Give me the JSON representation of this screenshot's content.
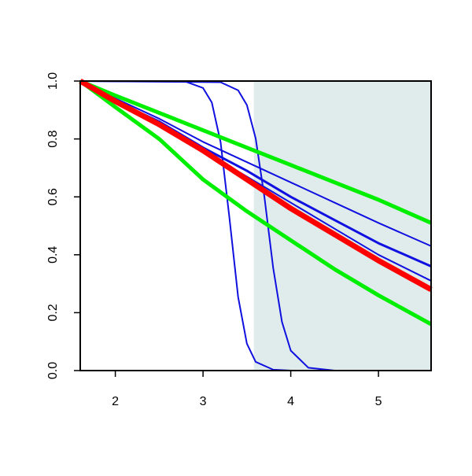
{
  "chart_data": {
    "type": "line",
    "xlim": [
      1.6,
      5.6
    ],
    "ylim": [
      0,
      1
    ],
    "xticks": [
      2,
      3,
      4,
      5
    ],
    "yticks": [
      {
        "value": 0,
        "label": "0.0"
      },
      0.2,
      0.4,
      0.6,
      0.8,
      {
        "value": 1,
        "label": "1.0"
      }
    ],
    "shade": {
      "x": [
        3.58,
        5.6
      ],
      "color": "#dfeceb"
    },
    "series": [
      {
        "color": "#1010e0",
        "width": 2,
        "x": [
          1.6,
          2,
          2.5,
          3,
          3.5,
          4,
          4.5,
          5,
          5.6
        ],
        "values": [
          1,
          0.94,
          0.87,
          0.79,
          0.72,
          0.65,
          0.58,
          0.51,
          0.43
        ]
      },
      {
        "color": "#1010e0",
        "width": 3,
        "x": [
          1.6,
          2,
          2.5,
          3,
          3.5,
          4,
          4.5,
          5,
          5.6
        ],
        "values": [
          1,
          0.93,
          0.86,
          0.77,
          0.69,
          0.6,
          0.52,
          0.44,
          0.36
        ]
      },
      {
        "color": "#1010e0",
        "width": 2,
        "x": [
          1.6,
          2,
          2.5,
          3,
          3.5,
          4,
          4.5,
          5,
          5.6
        ],
        "values": [
          1,
          0.93,
          0.85,
          0.76,
          0.67,
          0.58,
          0.49,
          0.4,
          0.31
        ]
      },
      {
        "color": "#1010e0",
        "width": 2,
        "x": [
          1.6,
          2.8,
          3.0,
          3.1,
          3.2,
          3.3,
          3.4,
          3.5,
          3.6,
          3.8,
          4.0,
          5.6
        ],
        "values": [
          1,
          0.998,
          0.976,
          0.926,
          0.789,
          0.53,
          0.254,
          0.093,
          0.03,
          0.003,
          0,
          0
        ]
      },
      {
        "color": "#1010e0",
        "width": 2,
        "x": [
          1.6,
          3.2,
          3.4,
          3.5,
          3.6,
          3.7,
          3.8,
          3.9,
          4.0,
          4.2,
          4.5,
          5.6
        ],
        "values": [
          1,
          0.996,
          0.968,
          0.917,
          0.802,
          0.599,
          0.354,
          0.168,
          0.069,
          0.01,
          0,
          0
        ]
      },
      {
        "color": "#00ee00",
        "width": 5,
        "x": [
          1.6,
          2,
          2.5,
          3,
          3.5,
          4,
          4.5,
          5,
          5.6
        ],
        "values": [
          1,
          0.95,
          0.89,
          0.83,
          0.77,
          0.71,
          0.65,
          0.59,
          0.51
        ]
      },
      {
        "color": "#00ee00",
        "width": 5,
        "x": [
          1.6,
          2,
          2.5,
          3,
          3.5,
          4,
          4.5,
          5,
          5.6
        ],
        "values": [
          1,
          0.91,
          0.8,
          0.66,
          0.55,
          0.45,
          0.35,
          0.26,
          0.16
        ]
      },
      {
        "color": "#ff0000",
        "width": 7,
        "x": [
          1.6,
          2,
          2.5,
          3,
          3.5,
          4,
          4.5,
          5,
          5.6
        ],
        "values": [
          1,
          0.93,
          0.85,
          0.76,
          0.66,
          0.56,
          0.47,
          0.38,
          0.28
        ]
      }
    ]
  }
}
